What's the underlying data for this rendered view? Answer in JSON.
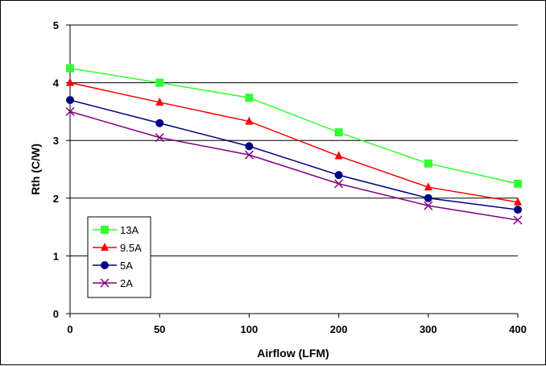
{
  "chart_data": {
    "type": "line",
    "title": "",
    "xlabel": "Airflow (LFM)",
    "ylabel": "Rth (C/W)",
    "categories": [
      "0",
      "50",
      "100",
      "200",
      "300",
      "400"
    ],
    "ylim": [
      0,
      5
    ],
    "yticks": [
      "0",
      "1",
      "2",
      "3",
      "4",
      "5"
    ],
    "grid": "horizontal",
    "legend_position": "bottom-left",
    "series": [
      {
        "name": "13A",
        "color": "#33ff33",
        "marker": "square",
        "values": [
          4.25,
          4.0,
          3.74,
          3.14,
          2.6,
          2.25
        ]
      },
      {
        "name": "9.5A",
        "color": "#ff0000",
        "marker": "triangle",
        "values": [
          4.0,
          3.66,
          3.33,
          2.73,
          2.19,
          1.93
        ]
      },
      {
        "name": "5A",
        "color": "#000080",
        "marker": "circle",
        "values": [
          3.7,
          3.3,
          2.9,
          2.4,
          2.0,
          1.8
        ]
      },
      {
        "name": "2A",
        "color": "#800080",
        "marker": "x",
        "values": [
          3.5,
          3.05,
          2.75,
          2.25,
          1.87,
          1.62
        ]
      }
    ]
  }
}
